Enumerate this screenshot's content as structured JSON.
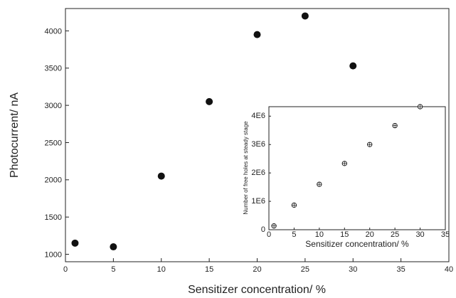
{
  "chart_data": [
    {
      "type": "scatter",
      "xlabel": "Sensitizer concentration/ %",
      "ylabel": "Photocurrent/ nA",
      "xlim": [
        0,
        40
      ],
      "ylim": [
        900,
        4300
      ],
      "xticks": [
        0,
        5,
        10,
        15,
        20,
        25,
        30,
        35,
        40
      ],
      "yticks": [
        1000,
        1500,
        2000,
        2500,
        3000,
        3500,
        4000
      ],
      "grid": false,
      "marker": "filled-circle",
      "color": "#111111",
      "series": [
        {
          "x": [
            1,
            5,
            10,
            15,
            20,
            25,
            30
          ],
          "y": [
            1150,
            1100,
            2050,
            3050,
            3950,
            4200,
            3530
          ]
        }
      ]
    },
    {
      "type": "scatter",
      "inset": true,
      "xlabel": "Sensitizer concentration/ %",
      "ylabel": "Number of free holes at steady stage",
      "xlim": [
        0,
        35
      ],
      "ylim": [
        0,
        6.5
      ],
      "xticks": [
        0,
        5,
        10,
        15,
        20,
        25,
        30,
        35
      ],
      "ytick_values": [
        0,
        1.5,
        3,
        4.5,
        6
      ],
      "ytick_labels": [
        "0",
        "1E6",
        "2E6",
        "3E6",
        "4E6"
      ],
      "grid": false,
      "marker": "open-circle-plus",
      "color": "#111111",
      "series": [
        {
          "x": [
            1,
            5,
            10,
            15,
            20,
            25,
            30
          ],
          "y": [
            0.2,
            1.3,
            2.4,
            3.5,
            4.5,
            5.5,
            6.5
          ]
        }
      ]
    }
  ]
}
